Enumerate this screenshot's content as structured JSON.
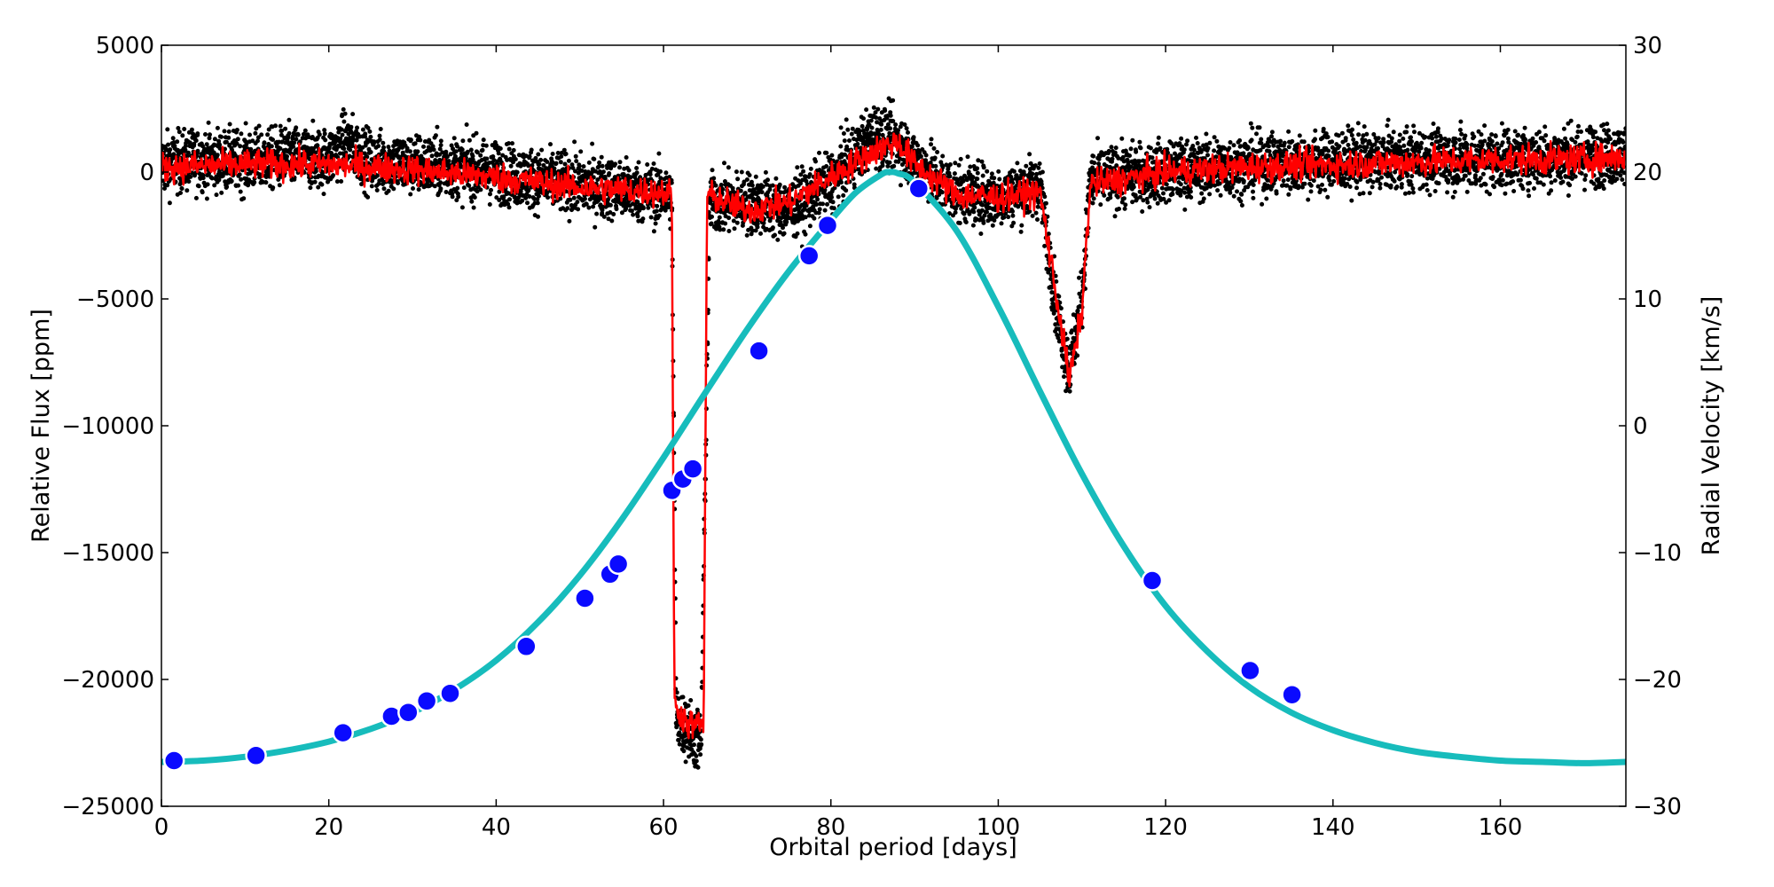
{
  "chart_data": {
    "type": "line",
    "title": "",
    "xlabel": "Orbital period [days]",
    "ylabel_left": "Relative Flux [ppm]",
    "ylabel_right": "Radial Velocity [km/s]",
    "xlim": [
      0,
      175
    ],
    "ylim_left": [
      -25000,
      5000
    ],
    "ylim_right": [
      -30,
      30
    ],
    "x_ticks": [
      0,
      20,
      40,
      60,
      80,
      100,
      120,
      140,
      160
    ],
    "x_tick_labels": [
      "0",
      "20",
      "40",
      "60",
      "80",
      "100",
      "120",
      "140",
      "160"
    ],
    "y_left_ticks": [
      5000,
      0,
      -5000,
      -10000,
      -15000,
      -20000,
      -25000
    ],
    "y_left_tick_labels": [
      "5000",
      "0",
      "−5000",
      "−10000",
      "−15000",
      "−20000",
      "−25000"
    ],
    "y_right_ticks": [
      30,
      20,
      10,
      0,
      -10,
      -20,
      -30
    ],
    "y_right_tick_labels": [
      "30",
      "20",
      "10",
      "0",
      "−10",
      "−20",
      "−30"
    ],
    "colors": {
      "raw_flux": "#000000",
      "smoothed_flux": "#ff0000",
      "rv_model": "#17bcbc",
      "rv_points": "#0a0aff",
      "rv_point_edge": "#ffffff"
    },
    "series": [
      {
        "name": "Raw flux",
        "axis": "left",
        "style": "scatter",
        "description_points": [
          [
            0,
            300
          ],
          [
            5,
            500
          ],
          [
            10,
            400
          ],
          [
            15,
            600
          ],
          [
            20,
            500
          ],
          [
            22,
            1200
          ],
          [
            25,
            400
          ],
          [
            30,
            300
          ],
          [
            35,
            200
          ],
          [
            40,
            0
          ],
          [
            45,
            -300
          ],
          [
            50,
            -500
          ],
          [
            55,
            -700
          ],
          [
            60,
            -900
          ],
          [
            61,
            -1000
          ],
          [
            61.5,
            -21500
          ],
          [
            63,
            -22000
          ],
          [
            64.5,
            -22500
          ],
          [
            65.5,
            -1200
          ],
          [
            70,
            -1200
          ],
          [
            75,
            -1500
          ],
          [
            80,
            -400
          ],
          [
            85,
            1500
          ],
          [
            88,
            1200
          ],
          [
            90,
            400
          ],
          [
            95,
            -800
          ],
          [
            100,
            -1000
          ],
          [
            105,
            -500
          ],
          [
            107,
            -5500
          ],
          [
            108.5,
            -7800
          ],
          [
            110,
            -5000
          ],
          [
            111,
            -300
          ],
          [
            120,
            0
          ],
          [
            130,
            300
          ],
          [
            140,
            400
          ],
          [
            150,
            500
          ],
          [
            160,
            500
          ],
          [
            170,
            600
          ],
          [
            175,
            700
          ]
        ]
      },
      {
        "name": "Smoothed flux",
        "axis": "left",
        "style": "line",
        "description_points": [
          [
            0,
            200
          ],
          [
            10,
            300
          ],
          [
            20,
            300
          ],
          [
            30,
            100
          ],
          [
            40,
            -200
          ],
          [
            50,
            -600
          ],
          [
            60,
            -800
          ],
          [
            61,
            -900
          ],
          [
            61.3,
            -21000
          ],
          [
            63,
            -21800
          ],
          [
            64.8,
            -21800
          ],
          [
            65.2,
            -900
          ],
          [
            70,
            -1500
          ],
          [
            75,
            -1200
          ],
          [
            80,
            -200
          ],
          [
            85,
            800
          ],
          [
            88,
            1200
          ],
          [
            90,
            300
          ],
          [
            95,
            -900
          ],
          [
            100,
            -1000
          ],
          [
            105,
            -800
          ],
          [
            107,
            -5000
          ],
          [
            108.5,
            -8200
          ],
          [
            110,
            -5500
          ],
          [
            111,
            -500
          ],
          [
            120,
            0
          ],
          [
            130,
            200
          ],
          [
            140,
            300
          ],
          [
            150,
            400
          ],
          [
            160,
            500
          ],
          [
            170,
            500
          ],
          [
            175,
            600
          ]
        ]
      },
      {
        "name": "RV model",
        "axis": "right",
        "style": "line",
        "points": [
          [
            0,
            -26.5
          ],
          [
            5,
            -26.4
          ],
          [
            10,
            -26.1
          ],
          [
            15,
            -25.6
          ],
          [
            20,
            -24.9
          ],
          [
            25,
            -23.9
          ],
          [
            30,
            -22.6
          ],
          [
            35,
            -20.8
          ],
          [
            40,
            -18.5
          ],
          [
            45,
            -15.5
          ],
          [
            50,
            -11.8
          ],
          [
            55,
            -7.4
          ],
          [
            60,
            -2.5
          ],
          [
            65,
            2.6
          ],
          [
            70,
            7.6
          ],
          [
            75,
            12.2
          ],
          [
            80,
            16.2
          ],
          [
            83,
            18.4
          ],
          [
            86,
            19.8
          ],
          [
            87,
            20.0
          ],
          [
            88,
            19.9
          ],
          [
            90,
            19.2
          ],
          [
            95,
            15.4
          ],
          [
            100,
            9.4
          ],
          [
            105,
            2.7
          ],
          [
            110,
            -3.8
          ],
          [
            115,
            -9.5
          ],
          [
            120,
            -14.2
          ],
          [
            125,
            -17.8
          ],
          [
            130,
            -20.6
          ],
          [
            135,
            -22.6
          ],
          [
            140,
            -24.0
          ],
          [
            145,
            -25.0
          ],
          [
            150,
            -25.7
          ],
          [
            155,
            -26.1
          ],
          [
            160,
            -26.4
          ],
          [
            165,
            -26.5
          ],
          [
            170,
            -26.6
          ],
          [
            175,
            -26.5
          ]
        ]
      },
      {
        "name": "RV measurements",
        "axis": "right",
        "style": "scatter",
        "points": [
          [
            1.5,
            -26.4
          ],
          [
            11.3,
            -26.0
          ],
          [
            21.7,
            -24.2
          ],
          [
            27.5,
            -22.9
          ],
          [
            29.5,
            -22.6
          ],
          [
            31.7,
            -21.7
          ],
          [
            34.5,
            -21.1
          ],
          [
            43.6,
            -17.4
          ],
          [
            50.6,
            -13.6
          ],
          [
            53.6,
            -11.7
          ],
          [
            54.6,
            -10.9
          ],
          [
            61,
            -5.1
          ],
          [
            62.3,
            -4.2
          ],
          [
            63.5,
            -3.4
          ],
          [
            71.4,
            5.9
          ],
          [
            77.4,
            13.4
          ],
          [
            79.6,
            15.8
          ],
          [
            90.5,
            18.7
          ],
          [
            118.4,
            -12.2
          ],
          [
            130.1,
            -19.3
          ],
          [
            135.1,
            -21.2
          ]
        ]
      }
    ]
  }
}
